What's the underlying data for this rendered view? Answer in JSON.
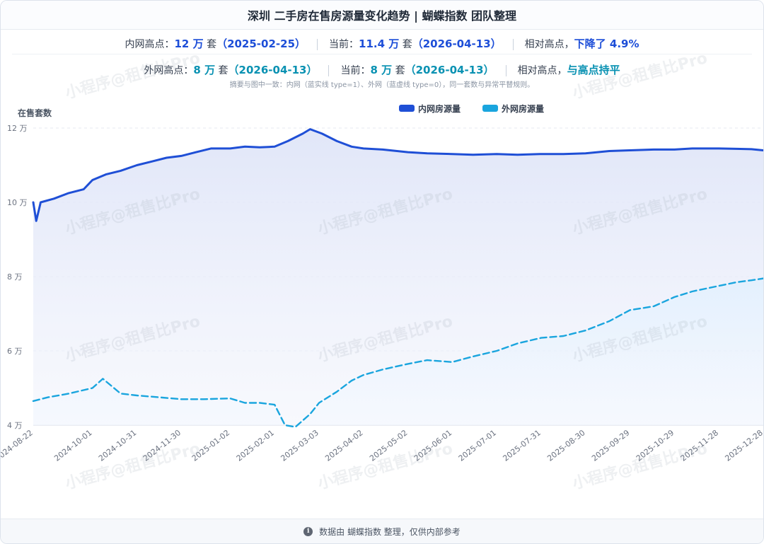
{
  "header": {
    "title": "深圳 二手房在售房源量变化趋势 | 蝴蝶指数 团队整理"
  },
  "summary": {
    "inner": {
      "peak_label": "内网高点：",
      "peak_value": "12 万",
      "unit": "套",
      "peak_date": "（2025-02-25）",
      "current_label": "当前：",
      "current_value": "11.4 万",
      "current_date": "（2026-04-13）",
      "relative_label": "相对高点，",
      "relative_value": "下降了 4.9%"
    },
    "outer": {
      "peak_label": "外网高点：",
      "peak_value": "8 万",
      "unit": "套",
      "peak_date": "（2026-04-13）",
      "current_label": "当前：",
      "current_value": "8 万",
      "current_date": "（2026-04-13）",
      "relative_label": "相对高点，",
      "relative_value": "与高点持平"
    },
    "rule_note": "摘要与图中一致：内网（蓝实线 type=1）、外网（蓝虚线 type=0），同一套数与异常平替规则。"
  },
  "watermark": "小程序@租售比Pro",
  "footer": {
    "icon": "info-icon",
    "text": "数据由 蝴蝶指数 整理，仅供内部参考"
  },
  "colors": {
    "inner": "#1f4fd6",
    "outer": "#1aa5de",
    "inner_fill": "#e8ecfa",
    "grid": "#e5e9f0"
  },
  "chart_data": {
    "type": "line",
    "ylabel": "在售套数",
    "y_ticks": [
      "4 万",
      "6 万",
      "8 万",
      "10 万",
      "12 万"
    ],
    "ylim": [
      4,
      12
    ],
    "x_ticks": [
      "2024-08-22",
      "2024-10-01",
      "2024-10-31",
      "2024-11-30",
      "2025-01-02",
      "2025-02-01",
      "2025-03-03",
      "2025-04-02",
      "2025-05-02",
      "2025-06-01",
      "2025-07-01",
      "2025-07-31",
      "2025-08-30",
      "2025-09-29",
      "2025-10-29",
      "2025-11-28",
      "2025-12-28"
    ],
    "xlim": [
      "2024-08-22",
      "2025-12-28"
    ],
    "legend": "top-center",
    "grid": true,
    "series": [
      {
        "name": "内网房源量",
        "style": "solid",
        "x": [
          "2024-08-22",
          "2024-08-24",
          "2024-08-27",
          "2024-09-05",
          "2024-09-15",
          "2024-09-25",
          "2024-10-01",
          "2024-10-10",
          "2024-10-20",
          "2024-10-31",
          "2024-11-10",
          "2024-11-20",
          "2024-11-30",
          "2024-12-10",
          "2024-12-20",
          "2025-01-02",
          "2025-01-12",
          "2025-01-22",
          "2025-02-01",
          "2025-02-10",
          "2025-02-20",
          "2025-02-25",
          "2025-03-05",
          "2025-03-15",
          "2025-03-25",
          "2025-04-02",
          "2025-04-15",
          "2025-05-02",
          "2025-05-15",
          "2025-06-01",
          "2025-06-15",
          "2025-07-01",
          "2025-07-15",
          "2025-07-31",
          "2025-08-15",
          "2025-08-30",
          "2025-09-15",
          "2025-09-29",
          "2025-10-15",
          "2025-10-29",
          "2025-11-10",
          "2025-11-28",
          "2025-12-10",
          "2025-12-20",
          "2025-12-28"
        ],
        "values": [
          10.0,
          9.5,
          10.0,
          10.1,
          10.25,
          10.35,
          10.6,
          10.75,
          10.85,
          11.0,
          11.1,
          11.2,
          11.25,
          11.35,
          11.45,
          11.45,
          11.5,
          11.48,
          11.5,
          11.65,
          11.85,
          11.97,
          11.85,
          11.65,
          11.5,
          11.45,
          11.42,
          11.35,
          11.32,
          11.3,
          11.28,
          11.3,
          11.28,
          11.3,
          11.3,
          11.32,
          11.38,
          11.4,
          11.42,
          11.42,
          11.45,
          11.45,
          11.44,
          11.43,
          11.4
        ]
      },
      {
        "name": "外网房源量",
        "style": "dashed",
        "x": [
          "2024-08-22",
          "2024-09-01",
          "2024-09-15",
          "2024-10-01",
          "2024-10-08",
          "2024-10-20",
          "2024-10-31",
          "2024-11-15",
          "2024-11-30",
          "2024-12-15",
          "2025-01-02",
          "2025-01-12",
          "2025-01-22",
          "2025-02-01",
          "2025-02-08",
          "2025-02-15",
          "2025-02-25",
          "2025-03-03",
          "2025-03-15",
          "2025-03-25",
          "2025-04-02",
          "2025-04-15",
          "2025-05-02",
          "2025-05-15",
          "2025-06-01",
          "2025-06-15",
          "2025-07-01",
          "2025-07-15",
          "2025-07-31",
          "2025-08-15",
          "2025-08-30",
          "2025-09-15",
          "2025-09-29",
          "2025-10-15",
          "2025-10-29",
          "2025-11-10",
          "2025-11-28",
          "2025-12-10",
          "2025-12-20",
          "2025-12-28"
        ],
        "values": [
          4.65,
          4.75,
          4.85,
          5.0,
          5.25,
          4.85,
          4.8,
          4.75,
          4.7,
          4.7,
          4.72,
          4.6,
          4.6,
          4.55,
          4.0,
          3.95,
          4.3,
          4.6,
          4.9,
          5.2,
          5.35,
          5.5,
          5.65,
          5.75,
          5.7,
          5.85,
          6.0,
          6.2,
          6.35,
          6.4,
          6.55,
          6.8,
          7.1,
          7.2,
          7.45,
          7.6,
          7.75,
          7.85,
          7.9,
          7.95
        ]
      }
    ]
  }
}
